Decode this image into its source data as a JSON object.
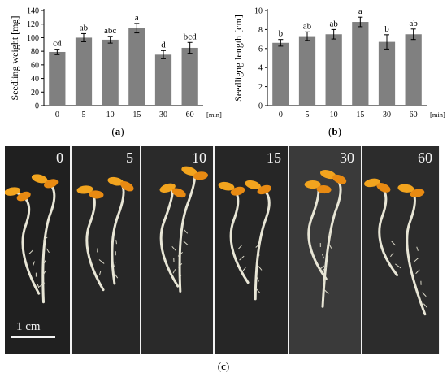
{
  "chart_data": [
    {
      "id": "a",
      "type": "bar",
      "title": "",
      "ylabel": "Seedling weight [mg]",
      "xlabel": "[min]",
      "categories": [
        "0",
        "5",
        "10",
        "15",
        "30",
        "60"
      ],
      "values": [
        79,
        100,
        97,
        114,
        75,
        85
      ],
      "errors": [
        4,
        6,
        5,
        7,
        6,
        8
      ],
      "letters": [
        "cd",
        "ab",
        "abc",
        "a",
        "d",
        "bcd"
      ],
      "ylim": [
        0,
        140
      ],
      "yticks": [
        "0",
        "20",
        "40",
        "60",
        "80",
        "100",
        "120",
        "140"
      ],
      "grid": false,
      "bar_color": "#808080"
    },
    {
      "id": "b",
      "type": "bar",
      "title": "",
      "ylabel": "Seedligng length [cm]",
      "xlabel": "[min]",
      "categories": [
        "0",
        "5",
        "10",
        "15",
        "30",
        "60"
      ],
      "values": [
        6.6,
        7.3,
        7.5,
        8.8,
        6.7,
        7.5
      ],
      "errors": [
        0.35,
        0.45,
        0.5,
        0.5,
        0.75,
        0.55
      ],
      "letters": [
        "b",
        "ab",
        "ab",
        "a",
        "b",
        "ab"
      ],
      "ylim": [
        0,
        10
      ],
      "yticks": [
        "0",
        "2",
        "4",
        "6",
        "8",
        "10"
      ],
      "grid": false,
      "bar_color": "#808080"
    }
  ],
  "captions": {
    "a": "a",
    "b": "b",
    "c": "c"
  },
  "photos": {
    "labels": [
      "0",
      "5",
      "10",
      "15",
      "30",
      "60"
    ],
    "scale_bar": "1 cm"
  }
}
